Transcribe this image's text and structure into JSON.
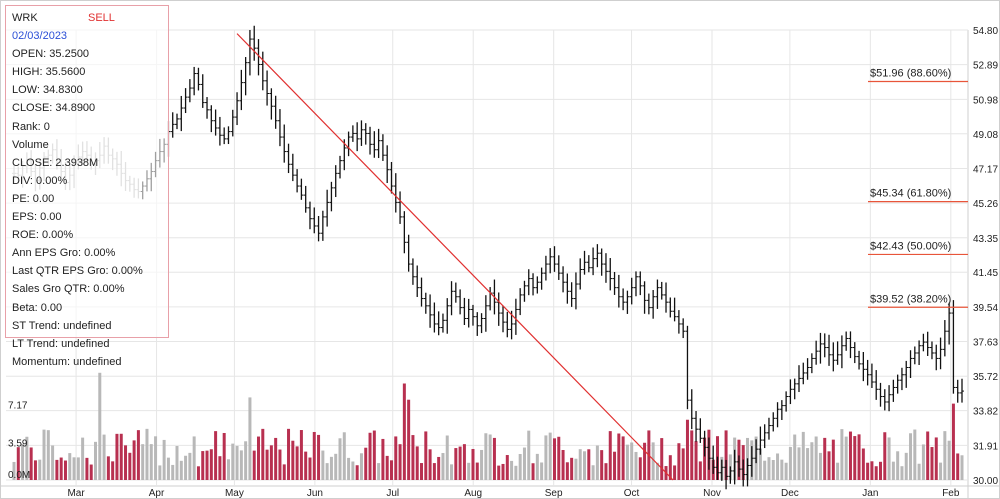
{
  "panel": {
    "ticker": "WRK",
    "signal": "SELL",
    "date": "02/03/2023",
    "open": "OPEN: 35.2500",
    "high": "HIGH: 35.5600",
    "low": "LOW: 34.8300",
    "close": "CLOSE: 34.8900",
    "rank": "Rank: 0",
    "volume_label": "Volume",
    "volume_close": "CLOSE: 2.3938M",
    "div": "DIV: 0.00%",
    "pe": "PE: 0.00",
    "eps": "EPS: 0.00",
    "roe": "ROE: 0.00%",
    "ann_eps": "Ann EPS Gro: 0.00%",
    "last_qtr": "Last QTR EPS Gro: 0.00%",
    "sales_gro": "Sales Gro QTR: 0.00%",
    "beta": "Beta: 0.00",
    "st_trend": "ST Trend: undefined",
    "lt_trend": "LT Trend: undefined",
    "momentum": "Momentum: undefined"
  },
  "colors": {
    "signal": "#e03030",
    "date": "#2b4fd6",
    "up_volume": "#b8b8b8",
    "down_volume": "#b83050",
    "trendline": "#e03030",
    "fib_line": "#e8553a",
    "grid": "#e6e6e6",
    "price": "#111111"
  },
  "chart_data": {
    "type": "candlestick",
    "price_ticks": [
      "54.80",
      "52.89",
      "50.98",
      "49.08",
      "47.17",
      "45.26",
      "43.35",
      "41.45",
      "39.54",
      "37.63",
      "35.72",
      "33.82",
      "31.91",
      "30.00"
    ],
    "volume_ticks": [
      "7.17",
      "3.59",
      "0.0M"
    ],
    "months": [
      "Mar",
      "Apr",
      "May",
      "Jun",
      "Jul",
      "Aug",
      "Sep",
      "Oct",
      "Nov",
      "Dec",
      "Jan",
      "Feb"
    ],
    "fib_levels": [
      {
        "label": "$51.96 (88.60%)",
        "price": 51.96
      },
      {
        "label": "$45.34 (61.80%)",
        "price": 45.34
      },
      {
        "label": "$42.43 (50.00%)",
        "price": 42.43
      },
      {
        "label": "$39.52 (38.20%)",
        "price": 39.52
      }
    ],
    "trendline": {
      "from": {
        "date": "2022-05-02",
        "price": 54.6
      },
      "to": {
        "date": "2022-10-17",
        "price": 30.0
      }
    },
    "price_range": [
      30.0,
      54.8
    ],
    "volume_range_m": [
      0,
      10.75
    ],
    "closes": [
      46.9,
      46.8,
      47.3,
      47.6,
      47.0,
      46.5,
      47.2,
      47.8,
      47.9,
      48.2,
      47.5,
      47.0,
      46.4,
      46.8,
      47.6,
      47.8,
      48.1,
      47.9,
      47.4,
      47.6,
      47.9,
      48.4,
      47.9,
      47.7,
      47.4,
      46.9,
      46.5,
      46.3,
      46.0,
      45.9,
      46.2,
      46.6,
      47.0,
      47.6,
      48.1,
      48.5,
      49.2,
      49.6,
      49.9,
      50.5,
      51.1,
      51.6,
      52.4,
      51.8,
      50.8,
      50.4,
      49.8,
      49.4,
      49.0,
      48.8,
      49.2,
      50.0,
      50.9,
      51.9,
      53.0,
      54.3,
      53.8,
      52.9,
      52.0,
      51.3,
      50.6,
      49.8,
      48.9,
      48.1,
      47.4,
      46.8,
      46.2,
      45.7,
      45.0,
      44.4,
      44.0,
      43.6,
      44.5,
      45.3,
      46.1,
      46.9,
      47.6,
      48.3,
      48.9,
      49.1,
      48.8,
      49.3,
      49.1,
      48.5,
      48.2,
      48.7,
      47.9,
      47.1,
      46.2,
      45.3,
      44.5,
      43.1,
      41.9,
      41.2,
      40.6,
      40.0,
      39.6,
      39.1,
      38.6,
      38.4,
      38.8,
      39.6,
      40.4,
      40.1,
      39.5,
      38.9,
      39.4,
      39.0,
      38.5,
      38.9,
      39.6,
      40.3,
      39.8,
      39.2,
      38.7,
      38.3,
      38.6,
      39.4,
      40.2,
      40.7,
      41.1,
      40.6,
      40.9,
      41.4,
      41.9,
      42.3,
      41.9,
      41.4,
      40.9,
      40.4,
      40.0,
      40.8,
      41.6,
      42.0,
      41.7,
      42.2,
      42.5,
      41.9,
      41.5,
      41.1,
      40.6,
      40.1,
      39.8,
      40.1,
      40.6,
      41.2,
      40.7,
      39.9,
      39.5,
      40.1,
      40.6,
      40.2,
      39.8,
      39.3,
      39.0,
      38.6,
      38.2,
      34.4,
      33.4,
      32.8,
      32.3,
      31.8,
      31.2,
      30.7,
      30.4,
      30.7,
      30.2,
      30.5,
      31.0,
      30.6,
      30.3,
      30.8,
      31.2,
      31.7,
      32.2,
      32.6,
      33.0,
      33.4,
      33.9,
      34.1,
      34.6,
      35.0,
      35.3,
      35.6,
      35.9,
      36.2,
      36.7,
      37.1,
      37.5,
      37.3,
      36.9,
      36.6,
      36.9,
      37.4,
      37.8,
      37.3,
      36.8,
      36.4,
      36.1,
      35.8,
      35.4,
      35.0,
      34.6,
      34.3,
      34.7,
      35.1,
      35.5,
      35.8,
      36.2,
      36.7,
      37.0,
      37.4,
      37.6,
      37.3,
      37.0,
      36.7,
      37.2,
      38.2,
      39.2,
      35.1,
      34.8,
      34.9
    ]
  }
}
